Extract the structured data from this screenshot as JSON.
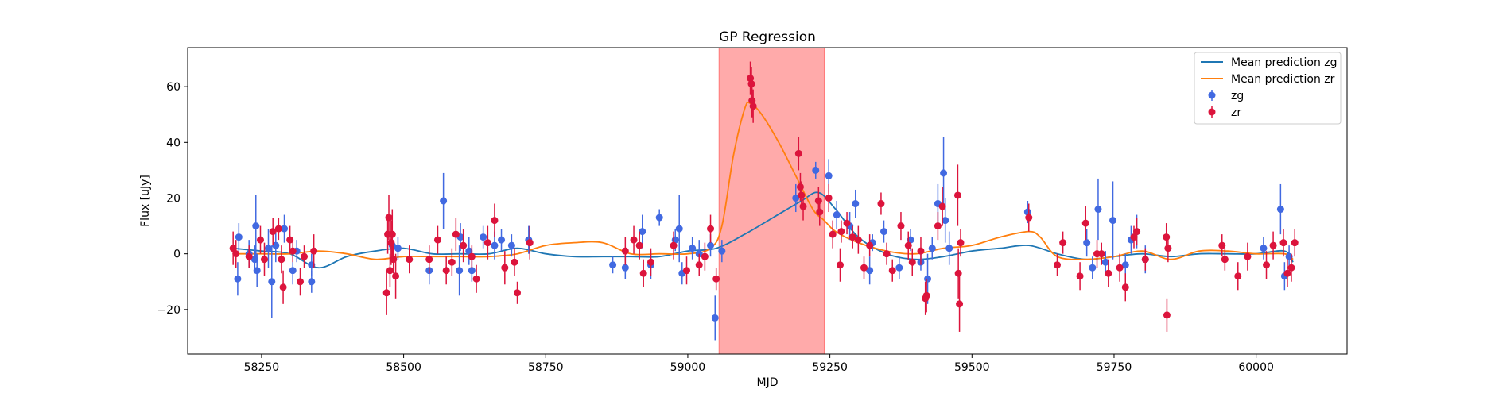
{
  "chart_data": {
    "type": "scatter",
    "title": "GP Regression",
    "xlabel": "MJD",
    "ylabel": "Flux [uJy]",
    "xlim": [
      58120,
      60160
    ],
    "ylim": [
      -36,
      74
    ],
    "x_ticks": [
      58250,
      58500,
      58750,
      59000,
      59250,
      59500,
      59750,
      60000
    ],
    "y_ticks": [
      -20,
      0,
      20,
      40,
      60
    ],
    "y_tick_labels": [
      "−20",
      "0",
      "20",
      "40",
      "60"
    ],
    "grid": false,
    "legend_position": "top-right",
    "highlight_region": {
      "x": [
        59055,
        59240
      ],
      "color": "#ffaaaa"
    },
    "colors": {
      "zg": "#4169e1",
      "zr": "#dc143c",
      "mean_zg": "#1f77b4",
      "mean_zr": "#ff7f0e"
    },
    "series": [
      {
        "name": "Mean prediction zg",
        "kind": "line",
        "color": "#1f77b4",
        "x": [
          58200,
          58250,
          58300,
          58350,
          58400,
          58450,
          58500,
          58550,
          58600,
          58650,
          58700,
          58750,
          58800,
          58850,
          58900,
          58950,
          59000,
          59050,
          59100,
          59150,
          59200,
          59230,
          59260,
          59300,
          59350,
          59400,
          59450,
          59500,
          59550,
          59600,
          59650,
          59700,
          59750,
          59800,
          59850,
          59900,
          59950,
          60000,
          60050,
          60065
        ],
        "y": [
          2,
          1,
          0,
          -5,
          -1,
          1,
          2,
          0,
          0,
          0,
          2,
          0,
          -1,
          -1,
          -1,
          -1,
          1,
          2,
          7,
          13,
          19,
          22,
          16,
          6,
          0,
          -2,
          -1,
          1,
          2,
          3,
          0,
          -2,
          -1,
          0,
          -1,
          0,
          0,
          0,
          1,
          -3
        ]
      },
      {
        "name": "Mean prediction zr",
        "kind": "line",
        "color": "#ff7f0e",
        "x": [
          58200,
          58250,
          58300,
          58350,
          58400,
          58450,
          58500,
          58550,
          58600,
          58650,
          58700,
          58750,
          58800,
          58850,
          58900,
          58950,
          59000,
          59040,
          59060,
          59080,
          59100,
          59110,
          59130,
          59160,
          59190,
          59220,
          59240,
          59260,
          59300,
          59350,
          59400,
          59450,
          59500,
          59550,
          59600,
          59620,
          59650,
          59700,
          59750,
          59800,
          59850,
          59900,
          59950,
          60000,
          60050,
          60065
        ],
        "y": [
          0,
          0,
          0,
          1,
          0,
          -2,
          -1,
          -1,
          -1,
          -1,
          0,
          3,
          4,
          4,
          0,
          0,
          0,
          2,
          10,
          35,
          52,
          54,
          50,
          40,
          28,
          16,
          12,
          8,
          4,
          1,
          0,
          2,
          3,
          6,
          8,
          6,
          -1,
          -2,
          -1,
          1,
          -2,
          1,
          1,
          0,
          0,
          -2
        ]
      },
      {
        "name": "zg",
        "kind": "scatter",
        "color": "#4169e1",
        "points": [
          [
            58208,
            -9,
            6
          ],
          [
            58210,
            6,
            5
          ],
          [
            58228,
            0,
            5
          ],
          [
            58238,
            -2,
            5
          ],
          [
            58240,
            10,
            11
          ],
          [
            58242,
            -6,
            6
          ],
          [
            58262,
            2,
            7
          ],
          [
            58268,
            -10,
            13
          ],
          [
            58275,
            3,
            6
          ],
          [
            58290,
            9,
            5
          ],
          [
            58305,
            -6,
            5
          ],
          [
            58312,
            1,
            4
          ],
          [
            58338,
            -10,
            4
          ],
          [
            58338,
            -4,
            4
          ],
          [
            58480,
            3,
            5
          ],
          [
            58490,
            2,
            4
          ],
          [
            58545,
            -6,
            5
          ],
          [
            58570,
            19,
            10
          ],
          [
            58598,
            -6,
            9
          ],
          [
            58600,
            6,
            5
          ],
          [
            58615,
            1,
            5
          ],
          [
            58620,
            -6,
            4
          ],
          [
            58640,
            6,
            4
          ],
          [
            58660,
            3,
            5
          ],
          [
            58672,
            5,
            4
          ],
          [
            58690,
            3,
            4
          ],
          [
            58720,
            5,
            5
          ],
          [
            58868,
            -4,
            3
          ],
          [
            58890,
            -5,
            4
          ],
          [
            58920,
            8,
            6
          ],
          [
            58935,
            -4,
            5
          ],
          [
            58950,
            13,
            3
          ],
          [
            58978,
            5,
            4
          ],
          [
            58985,
            9,
            12
          ],
          [
            58990,
            -7,
            4
          ],
          [
            59008,
            2,
            4
          ],
          [
            59020,
            0,
            5
          ],
          [
            59040,
            3,
            4
          ],
          [
            59048,
            -23,
            8
          ],
          [
            59060,
            1,
            4
          ],
          [
            59190,
            20,
            5
          ],
          [
            59225,
            30,
            3
          ],
          [
            59248,
            28,
            6
          ],
          [
            59262,
            14,
            5
          ],
          [
            59285,
            10,
            5
          ],
          [
            59295,
            18,
            5
          ],
          [
            59320,
            -6,
            5
          ],
          [
            59325,
            4,
            3
          ],
          [
            59345,
            8,
            4
          ],
          [
            59372,
            -5,
            4
          ],
          [
            59392,
            5,
            4
          ],
          [
            59410,
            -3,
            3
          ],
          [
            59422,
            -9,
            9
          ],
          [
            59430,
            2,
            4
          ],
          [
            59440,
            18,
            7
          ],
          [
            59450,
            29,
            13
          ],
          [
            59453,
            12,
            8
          ],
          [
            59460,
            2,
            6
          ],
          [
            59598,
            15,
            4
          ],
          [
            59702,
            4,
            5
          ],
          [
            59712,
            -5,
            4
          ],
          [
            59722,
            16,
            11
          ],
          [
            59735,
            -3,
            4
          ],
          [
            59748,
            12,
            14
          ],
          [
            59770,
            -4,
            4
          ],
          [
            59780,
            5,
            5
          ],
          [
            59790,
            8,
            6
          ],
          [
            59805,
            -2,
            5
          ],
          [
            60013,
            2,
            4
          ],
          [
            60043,
            16,
            9
          ],
          [
            60050,
            -8,
            5
          ],
          [
            60058,
            -1,
            4
          ]
        ]
      },
      {
        "name": "zr",
        "kind": "scatter",
        "color": "#dc143c",
        "points": [
          [
            58200,
            2,
            6
          ],
          [
            58205,
            0,
            5
          ],
          [
            58228,
            -1,
            4
          ],
          [
            58248,
            5,
            5
          ],
          [
            58255,
            -2,
            6
          ],
          [
            58270,
            8,
            5
          ],
          [
            58280,
            9,
            4
          ],
          [
            58285,
            -2,
            5
          ],
          [
            58288,
            -12,
            6
          ],
          [
            58300,
            5,
            5
          ],
          [
            58305,
            1,
            4
          ],
          [
            58318,
            -10,
            5
          ],
          [
            58325,
            -1,
            4
          ],
          [
            58342,
            1,
            6
          ],
          [
            58470,
            -14,
            8
          ],
          [
            58472,
            7,
            7
          ],
          [
            58474,
            13,
            8
          ],
          [
            58476,
            -6,
            6
          ],
          [
            58478,
            4,
            8
          ],
          [
            58480,
            7,
            9
          ],
          [
            58482,
            -2,
            5
          ],
          [
            58486,
            -8,
            8
          ],
          [
            58510,
            -2,
            5
          ],
          [
            58545,
            -2,
            5
          ],
          [
            58560,
            5,
            5
          ],
          [
            58575,
            -6,
            5
          ],
          [
            58585,
            -3,
            5
          ],
          [
            58592,
            7,
            6
          ],
          [
            58605,
            3,
            6
          ],
          [
            58620,
            -1,
            4
          ],
          [
            58628,
            -9,
            5
          ],
          [
            58648,
            4,
            6
          ],
          [
            58660,
            12,
            6
          ],
          [
            58678,
            -5,
            6
          ],
          [
            58695,
            -3,
            5
          ],
          [
            58700,
            -14,
            4
          ],
          [
            58722,
            4,
            6
          ],
          [
            58890,
            1,
            5
          ],
          [
            58905,
            5,
            5
          ],
          [
            58915,
            3,
            5
          ],
          [
            58922,
            -7,
            5
          ],
          [
            58935,
            -3,
            5
          ],
          [
            58975,
            3,
            5
          ],
          [
            58998,
            -6,
            5
          ],
          [
            59020,
            -4,
            4
          ],
          [
            59030,
            -1,
            5
          ],
          [
            59040,
            9,
            5
          ],
          [
            59050,
            -9,
            4
          ],
          [
            59110,
            63,
            6
          ],
          [
            59112,
            61,
            6
          ],
          [
            59113,
            55,
            6
          ],
          [
            59115,
            53,
            6
          ],
          [
            59195,
            36,
            6
          ],
          [
            59198,
            24,
            5
          ],
          [
            59200,
            21,
            5
          ],
          [
            59203,
            17,
            5
          ],
          [
            59230,
            19,
            5
          ],
          [
            59232,
            15,
            5
          ],
          [
            59248,
            20,
            5
          ],
          [
            59255,
            7,
            5
          ],
          [
            59268,
            -4,
            6
          ],
          [
            59270,
            8,
            4
          ],
          [
            59280,
            11,
            4
          ],
          [
            59290,
            6,
            4
          ],
          [
            59300,
            5,
            5
          ],
          [
            59310,
            -5,
            4
          ],
          [
            59320,
            3,
            4
          ],
          [
            59340,
            18,
            4
          ],
          [
            59350,
            0,
            4
          ],
          [
            59360,
            -6,
            4
          ],
          [
            59375,
            10,
            5
          ],
          [
            59388,
            3,
            5
          ],
          [
            59395,
            -3,
            5
          ],
          [
            59410,
            1,
            5
          ],
          [
            59418,
            -16,
            6
          ],
          [
            59420,
            -15,
            6
          ],
          [
            59440,
            10,
            5
          ],
          [
            59448,
            17,
            7
          ],
          [
            59475,
            21,
            11
          ],
          [
            59476,
            -7,
            9
          ],
          [
            59478,
            -18,
            10
          ],
          [
            59480,
            4,
            5
          ],
          [
            59600,
            13,
            5
          ],
          [
            59650,
            -4,
            4
          ],
          [
            59660,
            4,
            4
          ],
          [
            59690,
            -8,
            5
          ],
          [
            59700,
            11,
            6
          ],
          [
            59720,
            0,
            5
          ],
          [
            59728,
            0,
            4
          ],
          [
            59740,
            -7,
            5
          ],
          [
            59760,
            -5,
            5
          ],
          [
            59770,
            -12,
            5
          ],
          [
            59785,
            6,
            4
          ],
          [
            59790,
            8,
            5
          ],
          [
            59805,
            -2,
            4
          ],
          [
            59842,
            6,
            5
          ],
          [
            59845,
            2,
            5
          ],
          [
            59843,
            -22,
            6
          ],
          [
            59940,
            3,
            4
          ],
          [
            59945,
            -2,
            4
          ],
          [
            59968,
            -8,
            5
          ],
          [
            59985,
            -1,
            5
          ],
          [
            60018,
            -4,
            5
          ],
          [
            60030,
            3,
            5
          ],
          [
            60048,
            4,
            5
          ],
          [
            60055,
            -7,
            5
          ],
          [
            60062,
            -5,
            5
          ],
          [
            60068,
            4,
            5
          ]
        ]
      }
    ]
  }
}
